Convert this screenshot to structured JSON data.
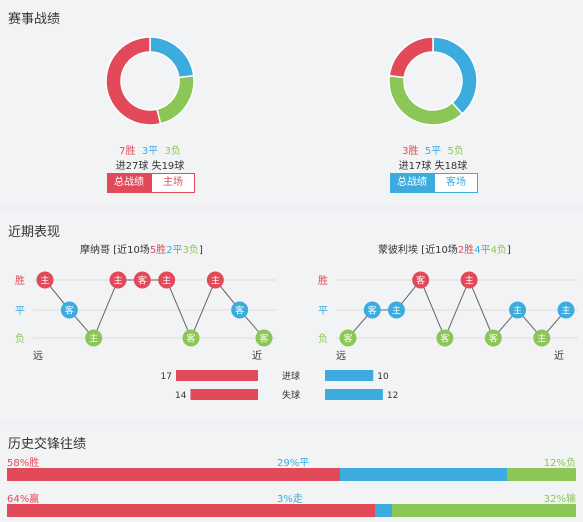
{
  "colors": {
    "win": "#e24a5a",
    "draw": "#3cacdf",
    "loss": "#8cc657"
  },
  "record": {
    "title": "赛事战绩",
    "left": {
      "win": 7,
      "draw": 3,
      "loss": 3,
      "win_text": "7胜",
      "draw_text": "3平",
      "loss_text": "3负",
      "goals_text": "进27球  失19球",
      "tab_active": "总战绩",
      "tab_other": "主场"
    },
    "right": {
      "win": 3,
      "draw": 5,
      "loss": 5,
      "win_text": "3胜",
      "draw_text": "5平",
      "loss_text": "5负",
      "goals_text": "进17球  失18球",
      "tab_active": "总战绩",
      "tab_other": "客场"
    }
  },
  "recent": {
    "title": "近期表现",
    "row_labels": [
      "胜",
      "平",
      "负"
    ],
    "far_label": "远",
    "near_label": "近",
    "left": {
      "team": "摩纳哥",
      "summary_pre": " [近10场",
      "w": "5胜",
      "d": "2平",
      "l": "3负",
      "summary_post": "]",
      "matches": [
        {
          "r": "W",
          "v": "主"
        },
        {
          "r": "D",
          "v": "客"
        },
        {
          "r": "L",
          "v": "主"
        },
        {
          "r": "W",
          "v": "主"
        },
        {
          "r": "W",
          "v": "客"
        },
        {
          "r": "W",
          "v": "主"
        },
        {
          "r": "L",
          "v": "客"
        },
        {
          "r": "W",
          "v": "主"
        },
        {
          "r": "D",
          "v": "客"
        },
        {
          "r": "L",
          "v": "客"
        }
      ]
    },
    "right": {
      "team": "蒙彼利埃",
      "summary_pre": " [近10场",
      "w": "2胜",
      "d": "4平",
      "l": "4负",
      "summary_post": "]",
      "matches": [
        {
          "r": "L",
          "v": "客"
        },
        {
          "r": "D",
          "v": "客"
        },
        {
          "r": "D",
          "v": "主"
        },
        {
          "r": "W",
          "v": "客"
        },
        {
          "r": "L",
          "v": "客"
        },
        {
          "r": "W",
          "v": "主"
        },
        {
          "r": "L",
          "v": "客"
        },
        {
          "r": "D",
          "v": "主"
        },
        {
          "r": "L",
          "v": "主"
        },
        {
          "r": "D",
          "v": "主"
        }
      ]
    },
    "goals": {
      "scored_label": "进球",
      "conceded_label": "失球",
      "left_scored": 17,
      "left_conceded": 14,
      "right_scored": 10,
      "right_conceded": 12
    }
  },
  "history": {
    "title": "历史交锋往绩",
    "row1": {
      "a_text": "58%胜",
      "b_text": "29%平",
      "c_text": "12%负",
      "a": 58,
      "b": 29,
      "c": 12
    },
    "row2": {
      "a_text": "64%赢",
      "b_text": "3%走",
      "c_text": "32%输",
      "a": 64,
      "b": 3,
      "c": 32
    }
  }
}
